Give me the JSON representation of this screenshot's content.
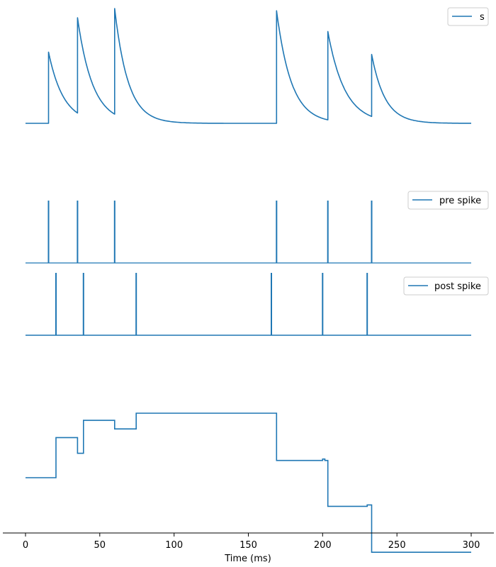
{
  "chart_data": [
    {
      "type": "line",
      "panel": "s",
      "xlim": [
        -15,
        315
      ],
      "ylim": [
        0,
        1.1
      ],
      "axes_visible": false,
      "legend": "top-right",
      "series": [
        {
          "name": "s",
          "color": "#1f77b4",
          "spike_times": [
            15.5,
            35,
            60,
            169,
            203.5,
            233
          ],
          "peaks": [
            0.62,
            0.92,
            1.0,
            0.98,
            0.8,
            0.6
          ],
          "troughs": [
            0.0,
            0.09,
            0.08,
            0.0,
            0.03,
            0.06
          ],
          "decay_tau_ms": 9
        }
      ]
    },
    {
      "type": "line",
      "panel": "pre spike",
      "xlim": [
        -15,
        315
      ],
      "ylim": [
        0,
        1
      ],
      "axes_visible": false,
      "legend": "top-right",
      "series": [
        {
          "name": "pre spike",
          "color": "#1f77b4",
          "spike_times": [
            15.5,
            35,
            60,
            169,
            203.5,
            233
          ]
        }
      ]
    },
    {
      "type": "line",
      "panel": "post spike",
      "xlim": [
        -15,
        315
      ],
      "ylim": [
        0,
        1
      ],
      "axes_visible": false,
      "legend": "top-right",
      "series": [
        {
          "name": "post spike",
          "color": "#1f77b4",
          "spike_times": [
            20.5,
            39,
            74.5,
            165.5,
            200,
            230
          ]
        }
      ]
    },
    {
      "type": "line",
      "panel": "weight",
      "xlim": [
        -15,
        315
      ],
      "ylim": [
        0,
        1
      ],
      "xlabel": "Time (ms)",
      "xticks": [
        0,
        50,
        100,
        150,
        200,
        250,
        300
      ],
      "axes_visible": "x-only",
      "legend": "none",
      "series": [
        {
          "color": "#1f77b4",
          "step_x": [
            0,
            20.5,
            35,
            39,
            60,
            74.5,
            169,
            200,
            201.5,
            203.5,
            230,
            233,
            300
          ],
          "step_y": [
            0.45,
            0.73,
            0.62,
            0.85,
            0.79,
            0.9,
            0.57,
            0.58,
            0.57,
            0.25,
            0.26,
            -0.07,
            -0.07
          ]
        }
      ]
    }
  ]
}
